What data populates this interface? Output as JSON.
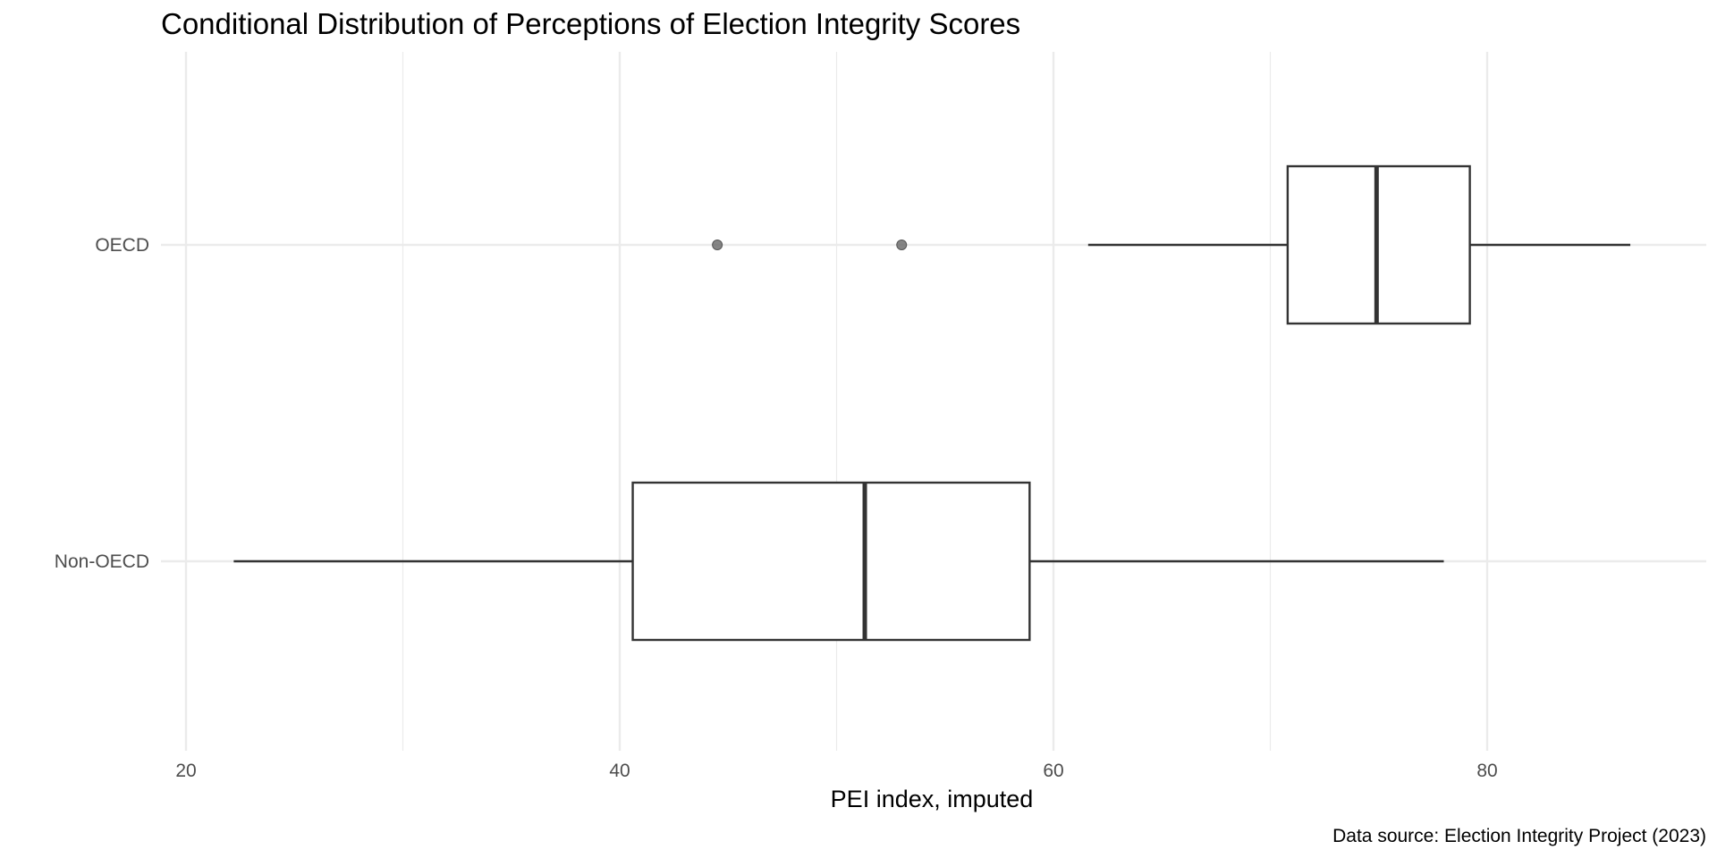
{
  "chart_data": {
    "type": "boxplot",
    "orientation": "horizontal",
    "title": "Conditional Distribution of Perceptions of Election Integrity Scores",
    "xlabel": "PEI index, imputed",
    "ylabel": "",
    "caption": "Data source: Election Integrity Project (2023)",
    "xlim": [
      20,
      90
    ],
    "x_ticks": [
      20,
      40,
      60,
      80
    ],
    "x_minor_ticks": [
      30,
      50,
      70
    ],
    "grid": true,
    "categories": [
      "Non-OECD",
      "OECD"
    ],
    "series": [
      {
        "category": "Non-OECD",
        "whisker_low": 22.2,
        "q1": 40.6,
        "median": 51.3,
        "q3": 58.9,
        "whisker_high": 78.0,
        "outliers": []
      },
      {
        "category": "OECD",
        "whisker_low": 61.6,
        "q1": 70.8,
        "median": 74.9,
        "q3": 79.2,
        "whisker_high": 86.6,
        "outliers": [
          44.5,
          53.0
        ]
      }
    ],
    "colors": {
      "box_fill": "#ffffff",
      "box_line": "#333333",
      "outlier": "#666666",
      "grid": "#ebebeb"
    }
  }
}
